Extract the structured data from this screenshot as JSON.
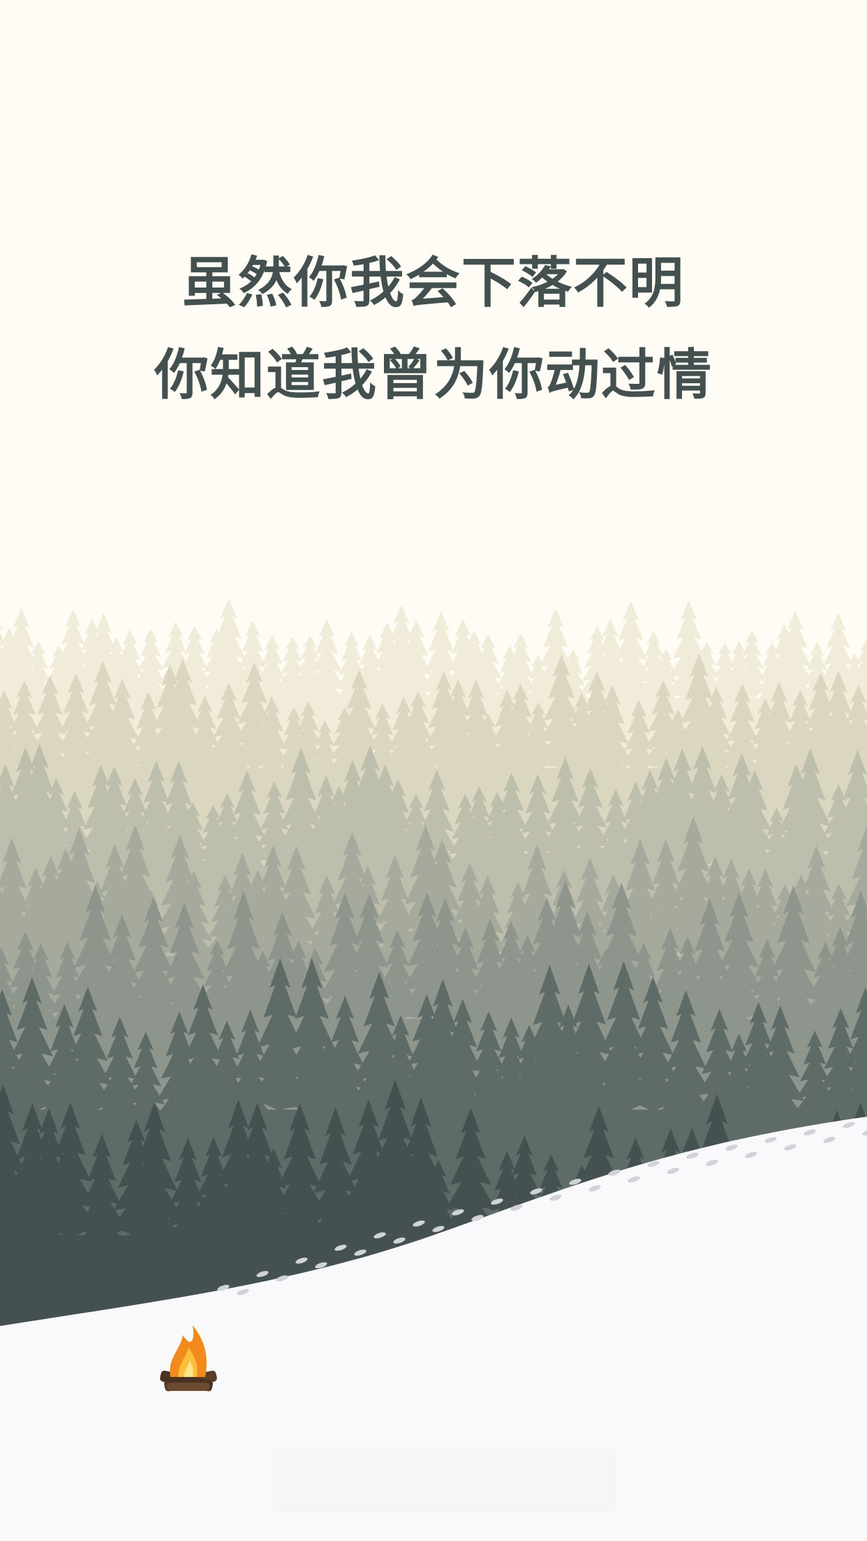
{
  "poem": {
    "line1": "虽然你我会下落不明",
    "line2": "你知道我曾为你动过情"
  },
  "palette": {
    "sky": "#fefcf4",
    "text": "#43504f",
    "forest_layers": [
      "#f1ecd9",
      "#dbd6c0",
      "#bdbeab",
      "#a5aa9c",
      "#8d958d",
      "#5f6b67",
      "#445150"
    ],
    "snow": "#f9f9fb",
    "footprints": "#d2d3d6",
    "fire": "#f28a1e",
    "logs": "#5a3e2a"
  },
  "icons": {
    "fire": "campfire-icon"
  }
}
